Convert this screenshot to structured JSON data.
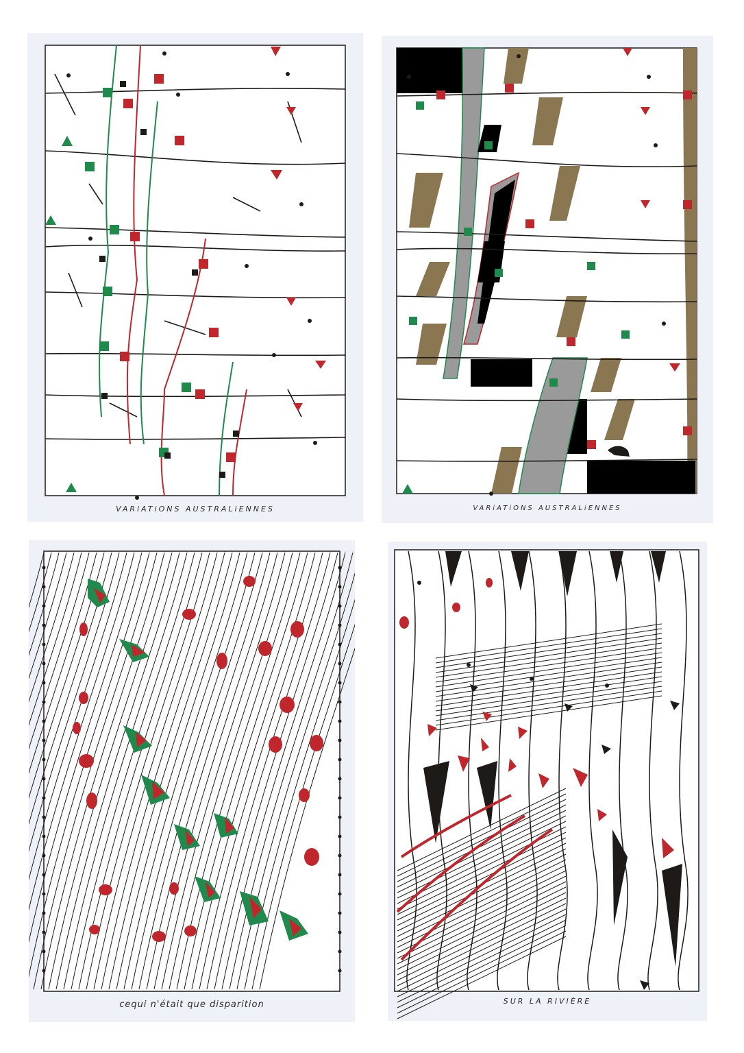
{
  "drawings": [
    {
      "caption": "VARiATiONS AUSTRALiENNES"
    },
    {
      "caption": "VARiATiONS AUSTRALiENNES"
    },
    {
      "caption": "cequi n'était que disparition"
    },
    {
      "caption": "SUR LA RIVIÈRE"
    }
  ],
  "colors": {
    "ink": "#1e1a18",
    "red": "#c0272d",
    "green": "#1f8a4c",
    "brown": "#8a7650",
    "grey": "#9a9a9a",
    "paper": "#ffffff",
    "mat": "#eef2f8"
  }
}
